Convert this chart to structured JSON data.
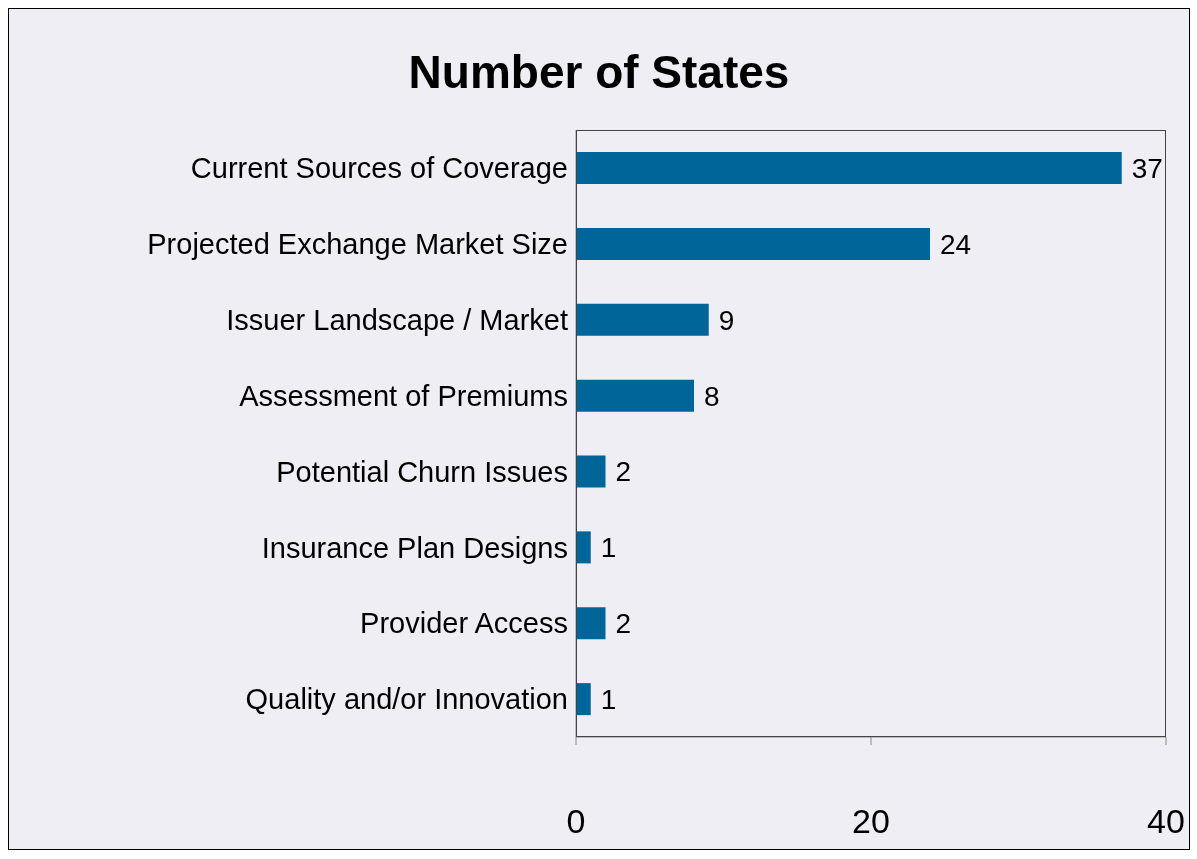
{
  "chart_data": {
    "type": "bar",
    "orientation": "horizontal",
    "title": "Number of States",
    "categories": [
      "Current Sources of Coverage",
      "Projected Exchange Market Size",
      "Issuer Landscape / Market",
      "Assessment of Premiums",
      "Potential Churn Issues",
      "Insurance Plan Designs",
      "Provider Access",
      "Quality and/or Innovation"
    ],
    "values": [
      37,
      24,
      9,
      8,
      2,
      1,
      2,
      1
    ],
    "color": "#006699",
    "xlim": [
      0,
      40
    ],
    "xticks": [
      0,
      20,
      40
    ],
    "data_labels": true,
    "grid": false
  }
}
